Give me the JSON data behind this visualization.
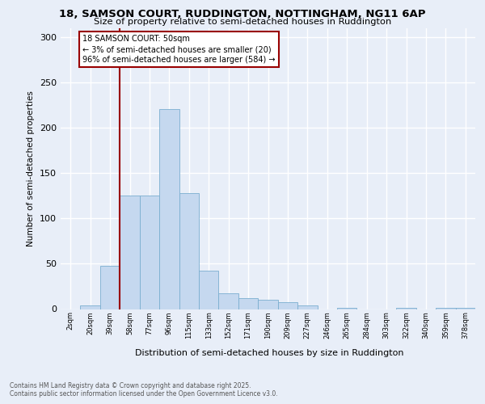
{
  "title_line1": "18, SAMSON COURT, RUDDINGTON, NOTTINGHAM, NG11 6AP",
  "title_line2": "Size of property relative to semi-detached houses in Ruddington",
  "xlabel": "Distribution of semi-detached houses by size in Ruddington",
  "ylabel": "Number of semi-detached properties",
  "footnote": "Contains HM Land Registry data © Crown copyright and database right 2025.\nContains public sector information licensed under the Open Government Licence v3.0.",
  "bin_labels": [
    "2sqm",
    "20sqm",
    "39sqm",
    "58sqm",
    "77sqm",
    "96sqm",
    "115sqm",
    "133sqm",
    "152sqm",
    "171sqm",
    "190sqm",
    "209sqm",
    "227sqm",
    "246sqm",
    "265sqm",
    "284sqm",
    "303sqm",
    "322sqm",
    "340sqm",
    "359sqm",
    "378sqm"
  ],
  "bar_values": [
    0,
    4,
    48,
    125,
    125,
    221,
    128,
    42,
    17,
    12,
    10,
    8,
    4,
    0,
    1,
    0,
    0,
    1,
    0,
    1,
    1
  ],
  "bar_color": "#c5d8ef",
  "bar_edge_color": "#7aaed0",
  "background_color": "#e8eef8",
  "grid_color": "#ffffff",
  "vline_color": "#990000",
  "annotation_text": "18 SAMSON COURT: 50sqm\n← 3% of semi-detached houses are smaller (20)\n96% of semi-detached houses are larger (584) →",
  "ylim": [
    0,
    310
  ],
  "yticks": [
    0,
    50,
    100,
    150,
    200,
    250,
    300
  ],
  "vline_pos": 2.5
}
